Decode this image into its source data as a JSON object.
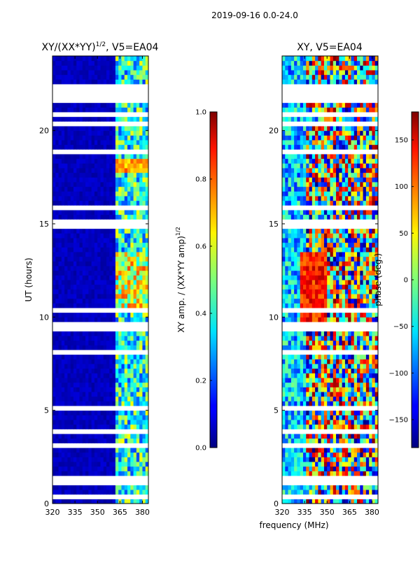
{
  "figure": {
    "suptitle": "2019-09-16 0.0-24.0",
    "xlabel": "frequency (MHz)"
  },
  "colors": {
    "background": "#000080",
    "stripe": "#ffffff",
    "accent": "#f5ff2a",
    "bright": "#2bd7ff"
  },
  "chart_data": [
    {
      "type": "heatmap",
      "title_base": "XY/(XX*YY)",
      "title_sup": "1/2",
      "title_suffix": ", V5=EA04",
      "ylabel": "UT (hours)",
      "xlim": [
        320,
        384
      ],
      "ylim": [
        0,
        24
      ],
      "xticks": [
        "320",
        "335",
        "350",
        "365",
        "380"
      ],
      "xtick_values": [
        320,
        335,
        350,
        365,
        380
      ],
      "yticks": [
        "0",
        "5",
        "10",
        "15",
        "20"
      ],
      "ytick_values": [
        0,
        5,
        10,
        15,
        20
      ],
      "colorbar": {
        "label_base": "XY amp. / (XX*YY amp)",
        "label_sup": "1/2",
        "vmin": 0.0,
        "vmax": 1.0,
        "ticks": [
          "0.0",
          "0.2",
          "0.4",
          "0.6",
          "0.8",
          "1.0"
        ],
        "tick_values": [
          0.0,
          0.2,
          0.4,
          0.6,
          0.8,
          1.0
        ]
      }
    },
    {
      "type": "heatmap",
      "title": "XY, V5=EA04",
      "xlim": [
        320,
        384
      ],
      "ylim": [
        0,
        24
      ],
      "xticks": [
        "320",
        "335",
        "350",
        "365",
        "380"
      ],
      "xtick_values": [
        320,
        335,
        350,
        365,
        380
      ],
      "yticks": [
        "0",
        "5",
        "10",
        "15",
        "20"
      ],
      "ytick_values": [
        0,
        5,
        10,
        15,
        20
      ],
      "colorbar": {
        "label": "phase (deg.)",
        "vmin": -180,
        "vmax": 180,
        "ticks": [
          "−150",
          "−100",
          "−50",
          "0",
          "50",
          "100",
          "150"
        ],
        "tick_values": [
          -150,
          -100,
          -50,
          0,
          50,
          100,
          150
        ]
      }
    }
  ]
}
